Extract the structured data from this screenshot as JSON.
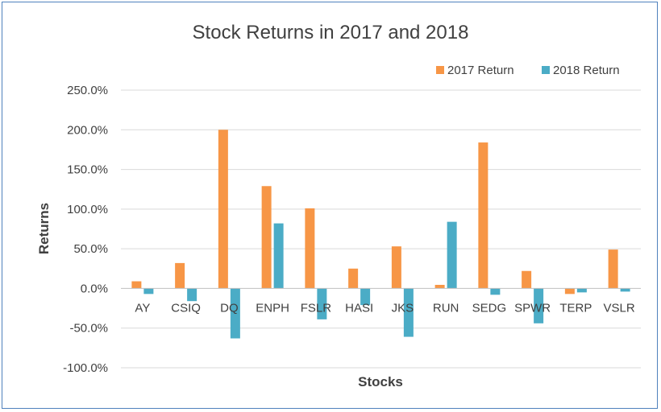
{
  "chart_data": {
    "type": "bar",
    "title": "Stock Returns in 2017 and 2018",
    "xlabel": "Stocks",
    "ylabel": "Returns",
    "categories": [
      "AY",
      "CSIQ",
      "DQ",
      "ENPH",
      "FSLR",
      "HASI",
      "JKS",
      "RUN",
      "SEDG",
      "SPWR",
      "TERP",
      "VSLR"
    ],
    "series": [
      {
        "name": "2017 Return",
        "color": "#f79646",
        "values": [
          9.0,
          32.0,
          200.0,
          129.0,
          101.0,
          25.0,
          53.0,
          4.5,
          184.0,
          22.0,
          -7.0,
          49.0
        ]
      },
      {
        "name": "2018 Return",
        "color": "#4bacc6",
        "values": [
          -7.0,
          -16.0,
          -63.0,
          82.0,
          -39.0,
          -21.0,
          -61.0,
          84.0,
          -8.0,
          -44.0,
          -5.0,
          -4.0
        ]
      }
    ],
    "ylim": [
      -100,
      250
    ],
    "yticks": [
      -100,
      -50,
      0,
      50,
      100,
      150,
      200,
      250
    ],
    "ytick_labels": [
      "-100.0%",
      "-50.0%",
      "0.0%",
      "50.0%",
      "100.0%",
      "150.0%",
      "200.0%",
      "250.0%"
    ],
    "grid": true,
    "legend_position": "top-right"
  }
}
